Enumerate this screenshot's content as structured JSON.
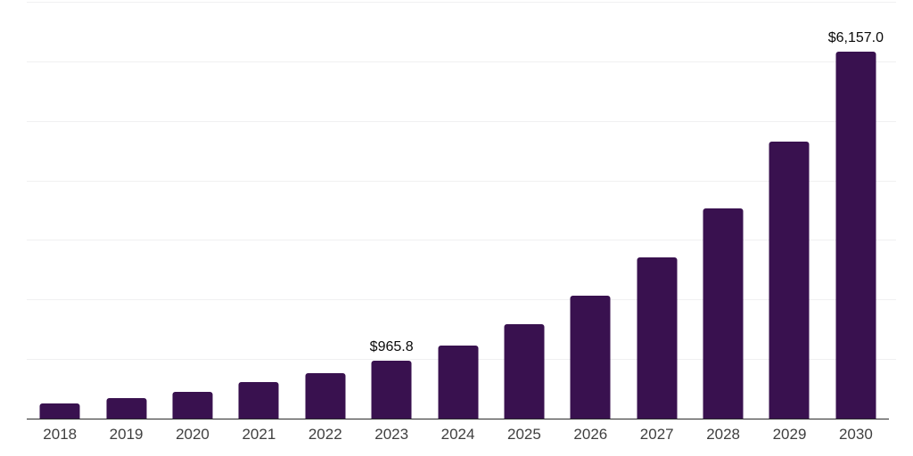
{
  "chart_data": {
    "type": "bar",
    "title": "",
    "xlabel": "",
    "ylabel": "",
    "categories": [
      "2018",
      "2019",
      "2020",
      "2021",
      "2022",
      "2023",
      "2024",
      "2025",
      "2026",
      "2027",
      "2028",
      "2029",
      "2030"
    ],
    "values": [
      255,
      345,
      450,
      615,
      765,
      965.8,
      1230,
      1590,
      2065,
      2710,
      3530,
      4655,
      6157
    ],
    "data_labels": {
      "2023": "$965.8",
      "2030": "$6,157.0"
    },
    "ylim": [
      0,
      7000
    ],
    "gridline_step": 1000,
    "grid": true,
    "legend": false,
    "y_axis_labels_visible": false,
    "colors": {
      "bar": "#39114f",
      "gridline": "#f0f0f1",
      "axis": "#2b2b2b",
      "tick_label": "#3f3f3f",
      "data_label": "#0a0a0a",
      "background": "#ffffff"
    }
  }
}
